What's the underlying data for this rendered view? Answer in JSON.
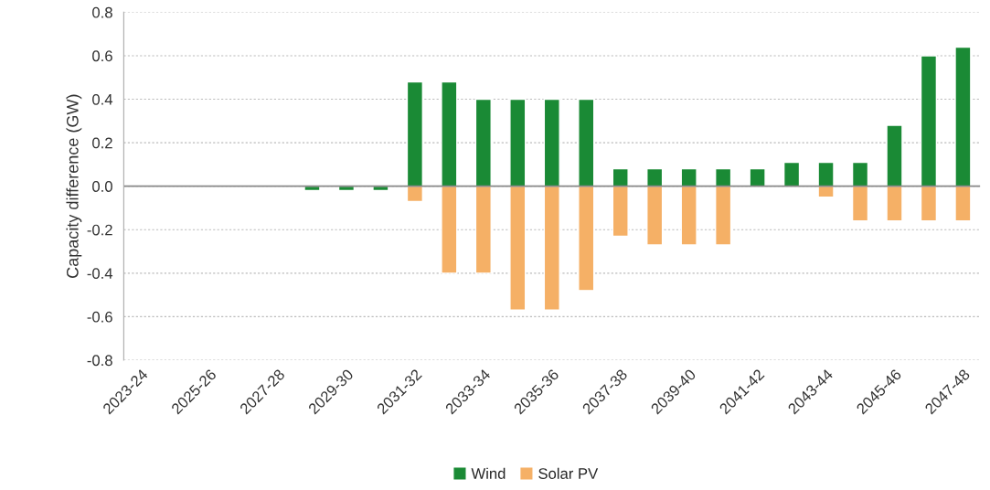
{
  "chart_data": {
    "type": "bar",
    "ylabel": "Capacity difference (GW)",
    "categories": [
      "2023-24",
      null,
      "2025-26",
      null,
      "2027-28",
      null,
      "2029-30",
      null,
      "2031-32",
      null,
      "2033-34",
      null,
      "2035-36",
      null,
      "2037-38",
      null,
      "2039-40",
      null,
      "2041-42",
      null,
      "2043-44",
      null,
      "2045-46",
      null,
      "2047-48"
    ],
    "series": [
      {
        "name": "Wind",
        "color": "#1a8a35",
        "values": [
          0,
          0,
          0,
          0,
          0,
          -0.02,
          -0.02,
          -0.02,
          0.48,
          0.48,
          0.4,
          0.4,
          0.4,
          0.4,
          0.08,
          0.08,
          0.08,
          0.08,
          0.08,
          0.11,
          0.11,
          0.11,
          0.28,
          0.6,
          0.64
        ]
      },
      {
        "name": "Solar PV",
        "color": "#f5b066",
        "values": [
          0,
          0,
          0,
          0,
          0,
          0,
          0,
          0,
          -0.07,
          -0.4,
          -0.4,
          -0.57,
          -0.57,
          -0.48,
          -0.23,
          -0.27,
          -0.27,
          -0.27,
          0,
          0,
          -0.05,
          -0.16,
          -0.16,
          -0.16,
          -0.16
        ]
      }
    ],
    "stacked": true,
    "ylim": [
      -0.8,
      0.8
    ],
    "yticks": [
      {
        "value": 0.8,
        "label": "0.8"
      },
      {
        "value": 0.6,
        "label": "0.6"
      },
      {
        "value": 0.4,
        "label": "0.4"
      },
      {
        "value": 0.2,
        "label": "0.2"
      },
      {
        "value": 0,
        "label": "0.0"
      },
      {
        "value": -0.2,
        "label": "-0.2"
      },
      {
        "value": -0.4,
        "label": "-0.4"
      },
      {
        "value": -0.6,
        "label": "-0.6"
      },
      {
        "value": -0.8,
        "label": "-0.8"
      }
    ],
    "grid": "y",
    "legend": "bottom"
  }
}
